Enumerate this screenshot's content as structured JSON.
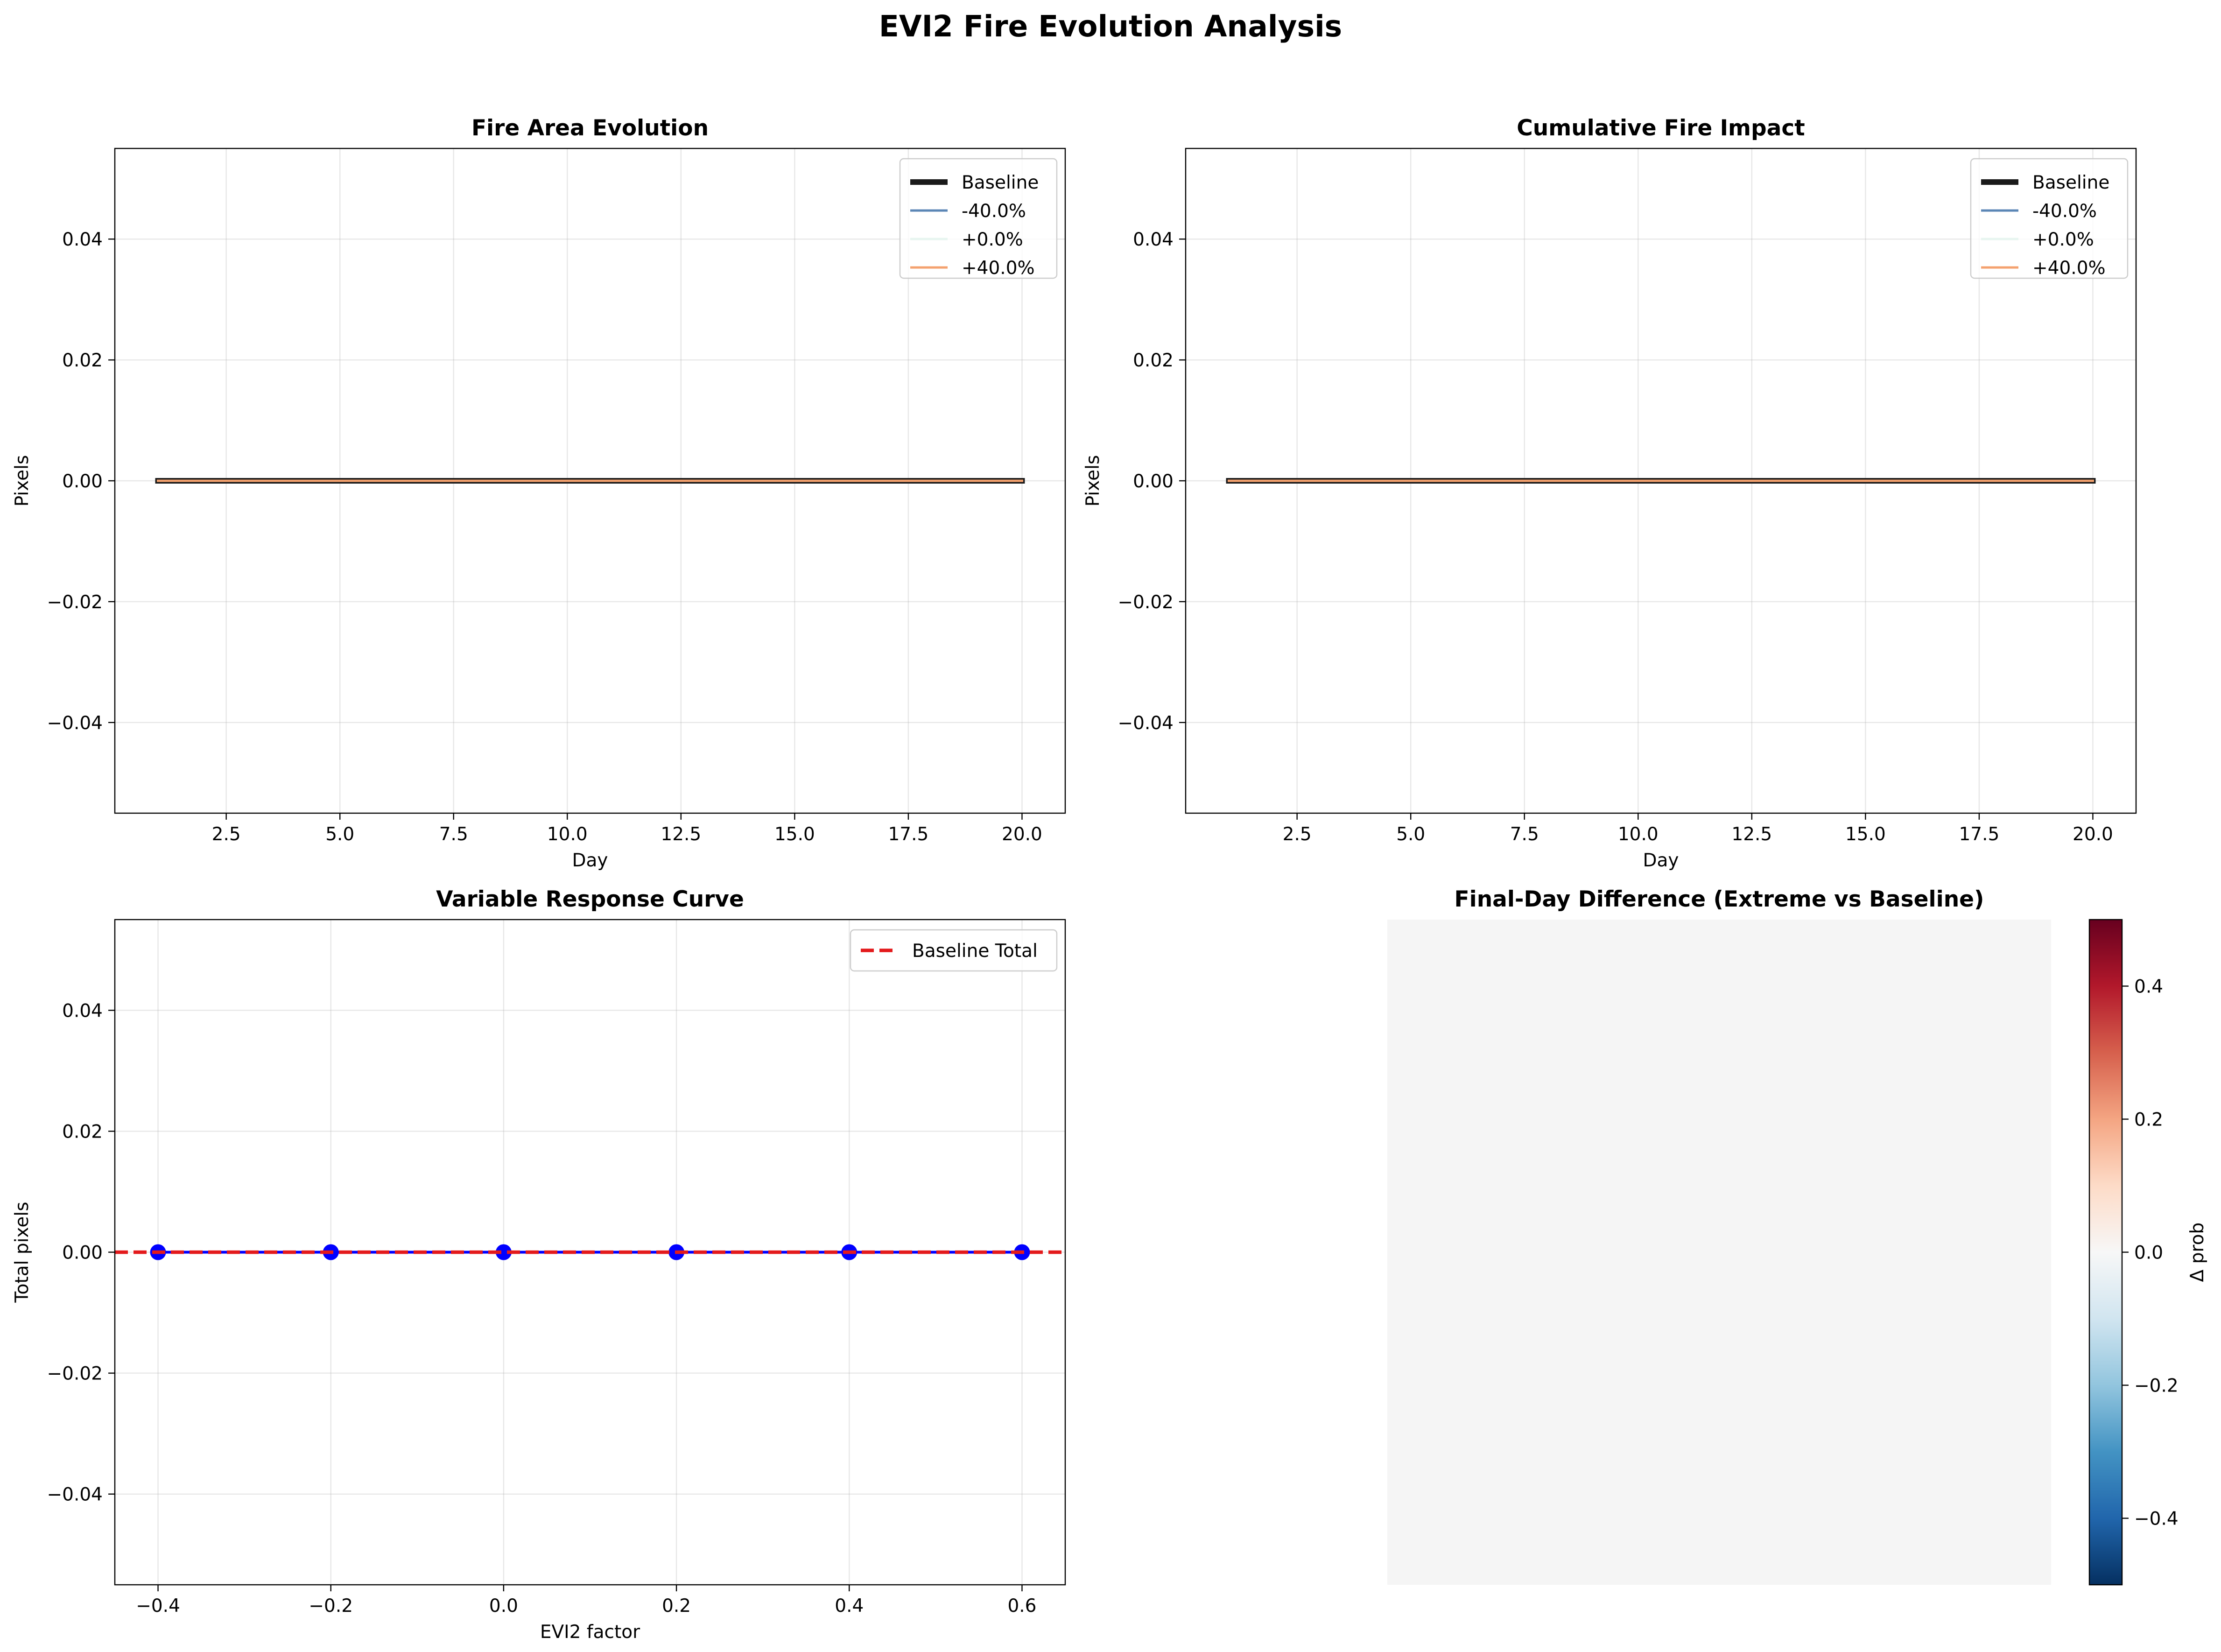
{
  "title": "EVI2 Fire Evolution Analysis",
  "colors": {
    "baseline": "#1a1a1a",
    "minus40": "#5b86b5",
    "zero": "#e7f5f0",
    "plus40": "#f4a16e",
    "baseline_total": "#e31a1c",
    "response": "#0000ff",
    "heatmap_fill": "#f5f5f5",
    "colormap": "RdBu_r"
  },
  "chart_data": [
    {
      "id": "area",
      "type": "line",
      "title": "Fire Area Evolution",
      "xlabel": "Day",
      "ylabel": "Pixels",
      "xlim": [
        0.05,
        20.95
      ],
      "ylim": [
        -0.055,
        0.055
      ],
      "xticks": [
        2.5,
        5.0,
        7.5,
        10.0,
        12.5,
        15.0,
        17.5,
        20.0
      ],
      "xtick_labels": [
        "2.5",
        "5.0",
        "7.5",
        "10.0",
        "12.5",
        "15.0",
        "17.5",
        "20.0"
      ],
      "yticks": [
        -0.04,
        -0.02,
        0.0,
        0.02,
        0.04
      ],
      "ytick_labels": [
        "−0.04",
        "−0.02",
        "0.00",
        "0.02",
        "0.04"
      ],
      "grid": true,
      "legend_position": "top-right",
      "x": [
        1,
        2,
        3,
        4,
        5,
        6,
        7,
        8,
        9,
        10,
        11,
        12,
        13,
        14,
        15,
        16,
        17,
        18,
        19,
        20
      ],
      "series": [
        {
          "name": "Baseline",
          "color_key": "baseline",
          "width": 12,
          "values": [
            0,
            0,
            0,
            0,
            0,
            0,
            0,
            0,
            0,
            0,
            0,
            0,
            0,
            0,
            0,
            0,
            0,
            0,
            0,
            0
          ]
        },
        {
          "name": "-40.0%",
          "color_key": "minus40",
          "width": 5,
          "values": [
            0,
            0,
            0,
            0,
            0,
            0,
            0,
            0,
            0,
            0,
            0,
            0,
            0,
            0,
            0,
            0,
            0,
            0,
            0,
            0
          ]
        },
        {
          "name": "+0.0%",
          "color_key": "zero",
          "width": 5,
          "values": [
            0,
            0,
            0,
            0,
            0,
            0,
            0,
            0,
            0,
            0,
            0,
            0,
            0,
            0,
            0,
            0,
            0,
            0,
            0,
            0
          ]
        },
        {
          "name": "+40.0%",
          "color_key": "plus40",
          "width": 5,
          "values": [
            0,
            0,
            0,
            0,
            0,
            0,
            0,
            0,
            0,
            0,
            0,
            0,
            0,
            0,
            0,
            0,
            0,
            0,
            0,
            0
          ]
        }
      ]
    },
    {
      "id": "cumulative",
      "type": "line",
      "title": "Cumulative Fire Impact",
      "xlabel": "Day",
      "ylabel": "Pixels",
      "xlim": [
        0.05,
        20.95
      ],
      "ylim": [
        -0.055,
        0.055
      ],
      "xticks": [
        2.5,
        5.0,
        7.5,
        10.0,
        12.5,
        15.0,
        17.5,
        20.0
      ],
      "xtick_labels": [
        "2.5",
        "5.0",
        "7.5",
        "10.0",
        "12.5",
        "15.0",
        "17.5",
        "20.0"
      ],
      "yticks": [
        -0.04,
        -0.02,
        0.0,
        0.02,
        0.04
      ],
      "ytick_labels": [
        "−0.04",
        "−0.02",
        "0.00",
        "0.02",
        "0.04"
      ],
      "grid": true,
      "legend_position": "top-right",
      "x": [
        1,
        2,
        3,
        4,
        5,
        6,
        7,
        8,
        9,
        10,
        11,
        12,
        13,
        14,
        15,
        16,
        17,
        18,
        19,
        20
      ],
      "series": [
        {
          "name": "Baseline",
          "color_key": "baseline",
          "width": 12,
          "values": [
            0,
            0,
            0,
            0,
            0,
            0,
            0,
            0,
            0,
            0,
            0,
            0,
            0,
            0,
            0,
            0,
            0,
            0,
            0,
            0
          ]
        },
        {
          "name": "-40.0%",
          "color_key": "minus40",
          "width": 5,
          "values": [
            0,
            0,
            0,
            0,
            0,
            0,
            0,
            0,
            0,
            0,
            0,
            0,
            0,
            0,
            0,
            0,
            0,
            0,
            0,
            0
          ]
        },
        {
          "name": "+0.0%",
          "color_key": "zero",
          "width": 5,
          "values": [
            0,
            0,
            0,
            0,
            0,
            0,
            0,
            0,
            0,
            0,
            0,
            0,
            0,
            0,
            0,
            0,
            0,
            0,
            0,
            0
          ]
        },
        {
          "name": "+40.0%",
          "color_key": "plus40",
          "width": 5,
          "values": [
            0,
            0,
            0,
            0,
            0,
            0,
            0,
            0,
            0,
            0,
            0,
            0,
            0,
            0,
            0,
            0,
            0,
            0,
            0,
            0
          ]
        }
      ]
    },
    {
      "id": "response",
      "type": "scatter",
      "title": "Variable Response Curve",
      "xlabel": "EVI2 factor",
      "ylabel": "Total pixels",
      "xlim": [
        -0.45,
        0.65
      ],
      "ylim": [
        -0.055,
        0.055
      ],
      "xticks": [
        -0.4,
        -0.2,
        0.0,
        0.2,
        0.4,
        0.6
      ],
      "xtick_labels": [
        "−0.4",
        "−0.2",
        "0.0",
        "0.2",
        "0.4",
        "0.6"
      ],
      "yticks": [
        -0.04,
        -0.02,
        0.0,
        0.02,
        0.04
      ],
      "ytick_labels": [
        "−0.04",
        "−0.02",
        "0.00",
        "0.02",
        "0.04"
      ],
      "grid": true,
      "legend_position": "top-right",
      "x": [
        -0.4,
        -0.2,
        0.0,
        0.2,
        0.4,
        0.6
      ],
      "values": [
        0,
        0,
        0,
        0,
        0,
        0
      ],
      "baseline_total": {
        "name": "Baseline Total",
        "value": 0
      }
    },
    {
      "id": "difference",
      "type": "heatmap",
      "title": "Final-Day Difference (Extreme vs Baseline)",
      "colorbar_label": "Δ prob",
      "value_range": [
        -0.5,
        0.5
      ],
      "cell_value": 0.0,
      "colorbar_ticks": [
        -0.4,
        -0.2,
        0.0,
        0.2,
        0.4
      ],
      "colorbar_tick_labels": [
        "−0.4",
        "−0.2",
        "0.0",
        "0.2",
        "0.4"
      ]
    }
  ]
}
